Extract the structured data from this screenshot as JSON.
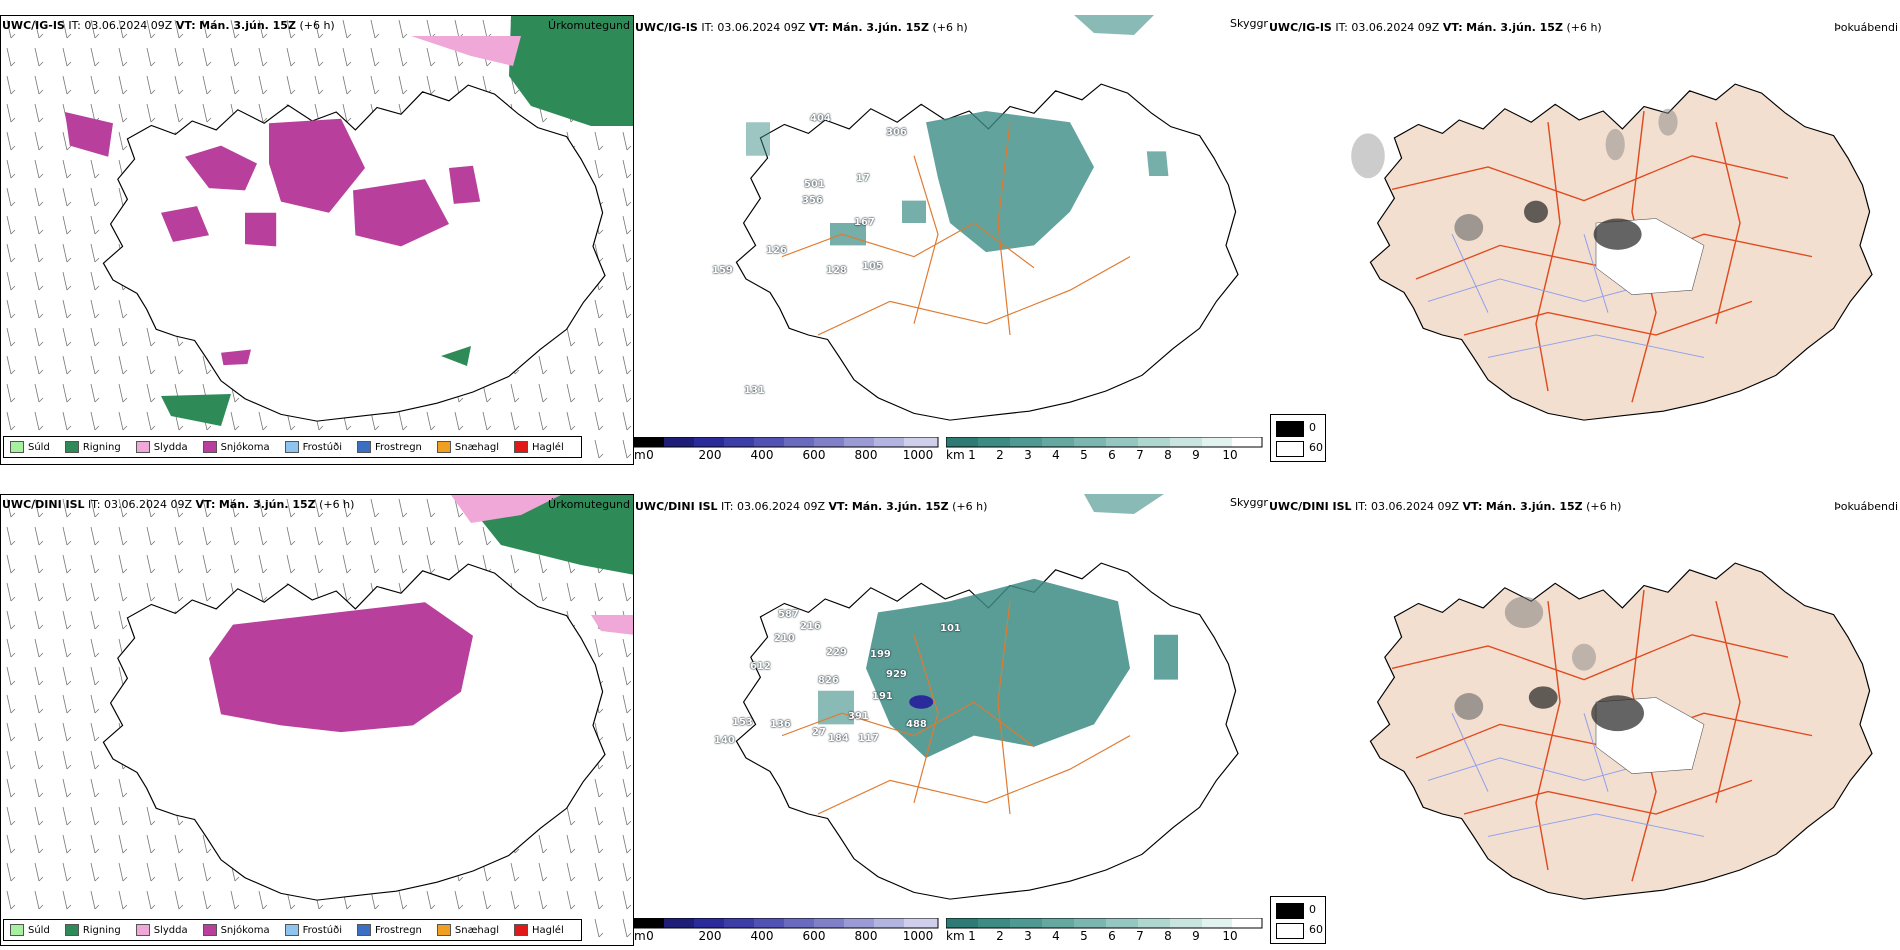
{
  "rows": [
    {
      "model": "UWC/IG-IS",
      "it_label": "IT:",
      "it_value": "03.06.2024 09Z",
      "vt_label": "VT:",
      "vt_value": "Mán. 3.jún. 15Z",
      "lead": "(+6 h)",
      "precip_title": "Úrkomutegund",
      "vis_title": "Skyggni",
      "fog_title": "Þokuábendi",
      "cloud_numbers": [
        "404",
        "306",
        "501",
        "356",
        "17",
        "167",
        "126",
        "128",
        "105",
        "159",
        "131"
      ]
    },
    {
      "model": "UWC/DINI ISL",
      "it_label": "IT:",
      "it_value": "03.06.2024 09Z",
      "vt_label": "VT:",
      "vt_value": "Mán. 3.jún. 15Z",
      "lead": "(+6 h)",
      "precip_title": "Úrkomutegund",
      "vis_title": "Skyggni",
      "fog_title": "Þokuábendi",
      "cloud_numbers": [
        "587",
        "216",
        "210",
        "612",
        "229",
        "826",
        "199",
        "929",
        "191",
        "391",
        "488",
        "101",
        "153",
        "140",
        "136",
        "184",
        "117",
        "27"
      ]
    }
  ],
  "precip_legend": [
    {
      "label": "Súld",
      "color": "#a6f0a0"
    },
    {
      "label": "Rigning",
      "color": "#2e8b57"
    },
    {
      "label": "Slydda",
      "color": "#f0a8d8"
    },
    {
      "label": "Snjókoma",
      "color": "#b8409c"
    },
    {
      "label": "Frostúði",
      "color": "#8ec4ee"
    },
    {
      "label": "Frostregn",
      "color": "#3a6fc4"
    },
    {
      "label": "Snæhagl",
      "color": "#f0a020"
    },
    {
      "label": "Haglél",
      "color": "#e01818"
    }
  ],
  "ceiling_scale": {
    "unit": "m",
    "ticks": [
      "0",
      "200",
      "400",
      "600",
      "800",
      "1000"
    ]
  },
  "visibility_scale": {
    "unit": "km",
    "ticks": [
      "1",
      "2",
      "3",
      "4",
      "5",
      "6",
      "7",
      "8",
      "9",
      "10"
    ]
  },
  "fog_scale": {
    "ticks": [
      "0",
      "60"
    ]
  },
  "colors": {
    "land": "#f3dfcf",
    "roads": "#e07a30",
    "fog_roads": "#e04a20",
    "rivers": "#8c9cf0",
    "snow": "#b8409c",
    "rain": "#2e8b57",
    "sleet": "#f0a8d8",
    "vis_teal": "#3c8c84",
    "ceiling_blue": "#2a2a9a"
  }
}
